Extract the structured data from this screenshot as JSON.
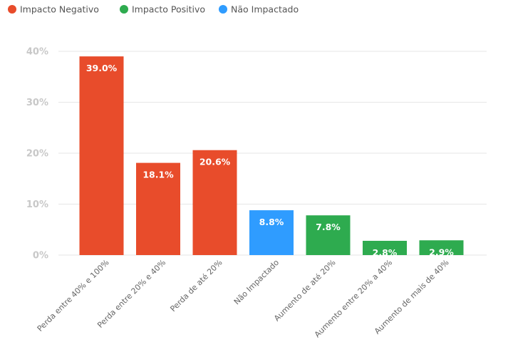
{
  "chart_data": {
    "type": "bar",
    "legend": [
      {
        "label": "Impacto Negativo",
        "color": "#e84c2b"
      },
      {
        "label": "Impacto Positivo",
        "color": "#2eab4f"
      },
      {
        "label": "Não Impactado",
        "color": "#2f9cff"
      }
    ],
    "legend_position": "top-left",
    "categories": [
      "Perda entre 40% e 100%",
      "Perda entre 20% e 40%",
      "Perda de até 20%",
      "Não Impactado",
      "Aumento de até 20%",
      "Aumento entre 20% a 40%",
      "Aumento de mais de 40%"
    ],
    "values": [
      39.0,
      18.1,
      20.6,
      8.8,
      7.8,
      2.8,
      2.9
    ],
    "data_labels": [
      "39.0%",
      "18.1%",
      "20.6%",
      "8.8%",
      "7.8%",
      "2.8%",
      "2.9%"
    ],
    "bar_groups": [
      0,
      0,
      0,
      2,
      1,
      1,
      1
    ],
    "yticks": [
      0,
      10,
      20,
      30,
      40
    ],
    "ytick_labels": [
      "0%",
      "10%",
      "20%",
      "30%",
      "40%"
    ],
    "ylim": [
      0,
      40
    ],
    "grid": true
  }
}
